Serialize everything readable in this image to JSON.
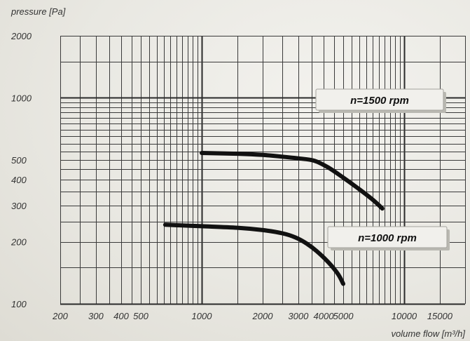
{
  "chart_data": {
    "type": "line",
    "xscale": "log",
    "yscale": "log",
    "xlim": [
      200,
      20000
    ],
    "ylim": [
      100,
      2000
    ],
    "ylabel": "pressure [Pa]",
    "xlabel": "volume flow [m³/h]",
    "x_ticks": [
      {
        "value": 200,
        "label": "200"
      },
      {
        "value": 300,
        "label": "300"
      },
      {
        "value": 400,
        "label": "400"
      },
      {
        "value": 500,
        "label": "500"
      },
      {
        "value": 1000,
        "label": "1000"
      },
      {
        "value": 2000,
        "label": "2000"
      },
      {
        "value": 3000,
        "label": "3000"
      },
      {
        "value": 4000,
        "label": "4000"
      },
      {
        "value": 5000,
        "label": "5000"
      },
      {
        "value": 10000,
        "label": "10000"
      },
      {
        "value": 15000,
        "label": "15000"
      }
    ],
    "y_ticks": [
      {
        "value": 100,
        "label": "100"
      },
      {
        "value": 200,
        "label": "200"
      },
      {
        "value": 300,
        "label": "300"
      },
      {
        "value": 400,
        "label": "400"
      },
      {
        "value": 500,
        "label": "500"
      },
      {
        "value": 1000,
        "label": "1000"
      },
      {
        "value": 2000,
        "label": "2000"
      }
    ],
    "grid": true,
    "series": [
      {
        "name": "n=1500 rpm",
        "x": [
          1000,
          1500,
          2000,
          2500,
          3000,
          3600,
          4200,
          5000,
          6000,
          7000,
          7800
        ],
        "y": [
          540,
          535,
          528,
          518,
          508,
          495,
          460,
          410,
          360,
          320,
          290
        ]
      },
      {
        "name": "n=1000 rpm",
        "x": [
          660,
          1000,
          1500,
          2000,
          2500,
          2900,
          3300,
          3700,
          4200,
          4700,
          5000
        ],
        "y": [
          242,
          238,
          234,
          228,
          220,
          210,
          196,
          180,
          160,
          140,
          125
        ]
      }
    ],
    "legend_boxes": [
      "n=1500 rpm",
      "n=1000 rpm"
    ]
  }
}
